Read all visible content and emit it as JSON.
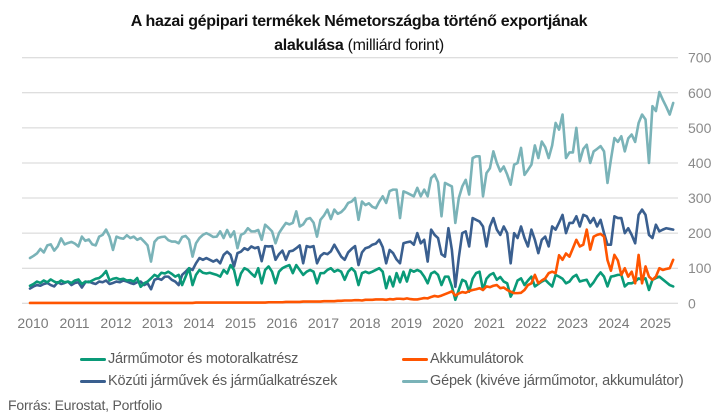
{
  "header": {
    "title_line1": "A hazai gépipari termékek Németországba történő exportjának",
    "title_line2_bold": "alakulása",
    "title_line2_rest": " (milliárd forint)"
  },
  "footer": {
    "source": "Forrás: Eurostat, Portfolio"
  },
  "chart_data": {
    "type": "line",
    "title": "A hazai gépipari termékek Németországba történő exportjának alakulása (milliárd forint)",
    "xlabel": "",
    "ylabel": "milliárd forint",
    "x_start": "2010-01",
    "x_frequency": "monthly",
    "xlim": [
      "2010-01",
      "2025-07"
    ],
    "x_ticks": [
      "2010",
      "2011",
      "2012",
      "2013",
      "2014",
      "2015",
      "2016",
      "2017",
      "2018",
      "2019",
      "2020",
      "2021",
      "2022",
      "2023",
      "2024",
      "2025"
    ],
    "ylim": [
      0,
      700
    ],
    "y_ticks": [
      0,
      100,
      200,
      300,
      400,
      500,
      600,
      700
    ],
    "y_axis_side": "right",
    "grid": true,
    "legend_position": "bottom",
    "series": [
      {
        "name": "Járműmotor és motoralkatrész",
        "color": "#0a9a78",
        "values": [
          50,
          55,
          62,
          58,
          65,
          60,
          68,
          62,
          58,
          65,
          60,
          62,
          58,
          65,
          68,
          55,
          62,
          60,
          65,
          70,
          72,
          80,
          92,
          65,
          70,
          72,
          68,
          70,
          65,
          66,
          62,
          72,
          47,
          57,
          62,
          71,
          81,
          76,
          87,
          85,
          90,
          84,
          76,
          81,
          52,
          76,
          100,
          52,
          81,
          95,
          87,
          85,
          87,
          84,
          81,
          76,
          95,
          85,
          109,
          95,
          52,
          85,
          100,
          95,
          85,
          76,
          100,
          57,
          95,
          105,
          90,
          57,
          90,
          100,
          105,
          109,
          86,
          109,
          95,
          81,
          90,
          95,
          90,
          57,
          86,
          86,
          95,
          100,
          90,
          95,
          90,
          67,
          90,
          100,
          90,
          52,
          86,
          90,
          86,
          90,
          95,
          100,
          90,
          43,
          76,
          48,
          86,
          60,
          90,
          62,
          95,
          90,
          95,
          90,
          76,
          57,
          85,
          90,
          81,
          52,
          76,
          76,
          48,
          10,
          38,
          67,
          62,
          33,
          70,
          86,
          90,
          38,
          70,
          81,
          86,
          67,
          75,
          62,
          57,
          19,
          38,
          65,
          71,
          52,
          65,
          76,
          48,
          55,
          62,
          67,
          57,
          48,
          81,
          76,
          70,
          57,
          62,
          75,
          81,
          62,
          65,
          67,
          48,
          60,
          76,
          88,
          76,
          48,
          76,
          78,
          81,
          81,
          48,
          57,
          57,
          62,
          71,
          67,
          71,
          38,
          67,
          72,
          76,
          68,
          60,
          52,
          48
        ]
      },
      {
        "name": "Akkumulátorok",
        "color": "#ff5500",
        "values": [
          1,
          1,
          1,
          1,
          1,
          1,
          1,
          1,
          1,
          1,
          1,
          1,
          1,
          1,
          1,
          1,
          1,
          1,
          1,
          1,
          1,
          1,
          1,
          1,
          1,
          1,
          1,
          1,
          1,
          1,
          1,
          1,
          1,
          1,
          1,
          1,
          1,
          1,
          1,
          1,
          1,
          1,
          1,
          1,
          1,
          1,
          1,
          1,
          2,
          2,
          2,
          2,
          2,
          2,
          2,
          2,
          2,
          2,
          2,
          2,
          2,
          2,
          2,
          2,
          2,
          2,
          2,
          2,
          2,
          3,
          3,
          3,
          3,
          3,
          4,
          4,
          4,
          4,
          4,
          5,
          5,
          5,
          5,
          5,
          5,
          6,
          6,
          6,
          6,
          7,
          7,
          8,
          8,
          8,
          9,
          9,
          8,
          10,
          10,
          10,
          11,
          11,
          11,
          10,
          12,
          11,
          13,
          13,
          12,
          14,
          12,
          11,
          11,
          13,
          15,
          14,
          18,
          21,
          19,
          22,
          26,
          30,
          34,
          22,
          28,
          32,
          30,
          35,
          38,
          40,
          43,
          38,
          48,
          46,
          50,
          52,
          43,
          45,
          38,
          33,
          29,
          29,
          30,
          38,
          52,
          57,
          81,
          57,
          65,
          71,
          86,
          90,
          86,
          137,
          124,
          142,
          133,
          157,
          181,
          162,
          167,
          210,
          153,
          190,
          195,
          198,
          190,
          123,
          93,
          138,
          122,
          81,
          100,
          76,
          90,
          57,
          138,
          57,
          105,
          76,
          67,
          76,
          100,
          95,
          98,
          100,
          124
        ]
      },
      {
        "name": "Közúti járművek és járműalkatrészek",
        "color": "#3a5f8f",
        "values": [
          42,
          48,
          52,
          50,
          55,
          58,
          52,
          48,
          60,
          55,
          58,
          62,
          52,
          58,
          60,
          45,
          60,
          62,
          58,
          55,
          62,
          60,
          65,
          55,
          58,
          62,
          60,
          65,
          62,
          58,
          55,
          60,
          62,
          52,
          57,
          40,
          67,
          71,
          67,
          76,
          76,
          67,
          62,
          52,
          81,
          90,
          100,
          95,
          114,
          129,
          124,
          129,
          124,
          119,
          124,
          114,
          138,
          147,
          138,
          105,
          143,
          147,
          157,
          152,
          162,
          157,
          160,
          120,
          163,
          162,
          163,
          124,
          140,
          150,
          124,
          148,
          150,
          157,
          165,
          114,
          163,
          160,
          163,
          114,
          135,
          143,
          140,
          148,
          167,
          150,
          133,
          124,
          145,
          155,
          163,
          109,
          145,
          157,
          160,
          167,
          170,
          181,
          160,
          114,
          152,
          143,
          125,
          114,
          171,
          174,
          176,
          167,
          200,
          171,
          181,
          119,
          210,
          195,
          186,
          140,
          133,
          214,
          152,
          47,
          130,
          200,
          205,
          162,
          243,
          238,
          233,
          219,
          162,
          219,
          243,
          210,
          195,
          219,
          200,
          114,
          200,
          186,
          219,
          186,
          162,
          210,
          181,
          143,
          181,
          190,
          162,
          219,
          210,
          230,
          252,
          200,
          229,
          229,
          248,
          219,
          252,
          248,
          229,
          243,
          219,
          238,
          200,
          167,
          167,
          248,
          243,
          243,
          200,
          214,
          195,
          171,
          252,
          267,
          252,
          195,
          186,
          224,
          205,
          210,
          214,
          212,
          210
        ]
      },
      {
        "name": "Gépek (kivéve járműmotor, akkumulátor)",
        "color": "#7ab3b8",
        "values": [
          129,
          135,
          142,
          155,
          145,
          165,
          168,
          150,
          162,
          185,
          168,
          172,
          175,
          170,
          162,
          190,
          178,
          182,
          168,
          165,
          190,
          195,
          210,
          190,
          152,
          190,
          186,
          184,
          194,
          186,
          190,
          181,
          186,
          176,
          165,
          119,
          175,
          186,
          189,
          190,
          180,
          176,
          176,
          171,
          189,
          192,
          181,
          133,
          171,
          186,
          195,
          200,
          195,
          189,
          190,
          205,
          186,
          209,
          189,
          205,
          157,
          195,
          200,
          214,
          205,
          205,
          209,
          181,
          224,
          215,
          205,
          171,
          200,
          215,
          229,
          225,
          229,
          262,
          219,
          225,
          240,
          243,
          230,
          190,
          238,
          250,
          267,
          240,
          267,
          255,
          260,
          270,
          286,
          290,
          300,
          238,
          290,
          280,
          285,
          275,
          271,
          290,
          305,
          286,
          320,
          324,
          324,
          243,
          319,
          315,
          310,
          305,
          329,
          305,
          324,
          305,
          357,
          367,
          345,
          248,
          343,
          338,
          333,
          229,
          300,
          333,
          352,
          310,
          414,
          419,
          419,
          305,
          371,
          385,
          433,
          400,
          376,
          390,
          367,
          338,
          395,
          400,
          443,
          366,
          380,
          395,
          450,
          414,
          461,
          445,
          414,
          450,
          514,
          495,
          538,
          414,
          430,
          430,
          500,
          405,
          440,
          452,
          400,
          433,
          440,
          448,
          433,
          343,
          410,
          471,
          460,
          476,
          433,
          470,
          481,
          460,
          514,
          538,
          524,
          400,
          562,
          548,
          602,
          580,
          560,
          538,
          571
        ]
      }
    ]
  }
}
